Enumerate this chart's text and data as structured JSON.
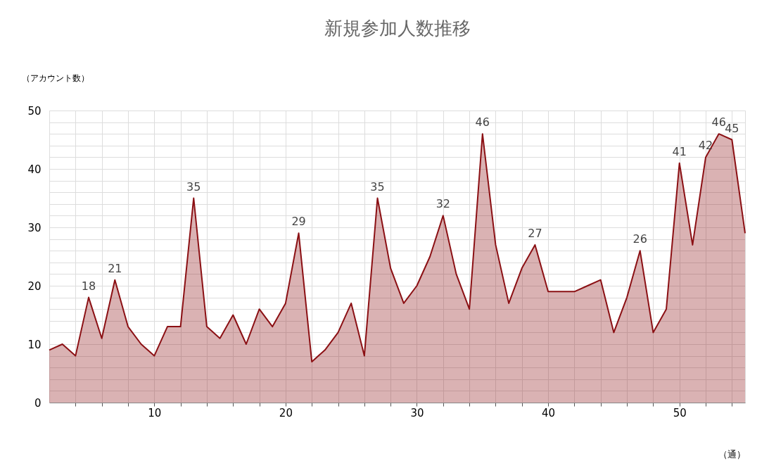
{
  "chart_data": {
    "type": "area",
    "title": "新規参加人数推移",
    "xlabel": "（通）",
    "ylabel": "（アカウント数）",
    "x": [
      2,
      3,
      4,
      5,
      6,
      7,
      8,
      9,
      10,
      11,
      12,
      13,
      14,
      15,
      16,
      17,
      18,
      19,
      20,
      21,
      22,
      23,
      24,
      25,
      26,
      27,
      28,
      29,
      30,
      31,
      32,
      33,
      34,
      35,
      36,
      37,
      38,
      39,
      40,
      41,
      42,
      43,
      44,
      45,
      46,
      47,
      48,
      49,
      50,
      51,
      52,
      53,
      54,
      55
    ],
    "series": [
      {
        "color": "#8b1014",
        "values": [
          9,
          10,
          8,
          18,
          11,
          21,
          13,
          10,
          8,
          13,
          13,
          35,
          13,
          11,
          15,
          10,
          16,
          13,
          17,
          29,
          7,
          9,
          12,
          17,
          8,
          35,
          23,
          17,
          20,
          25,
          32,
          22,
          16,
          46,
          27,
          17,
          23,
          27,
          19,
          19,
          19,
          20,
          21,
          12,
          18,
          26,
          12,
          16,
          41,
          27,
          42,
          46,
          45,
          29
        ],
        "value_labels": [
          null,
          null,
          null,
          "18",
          null,
          "21",
          null,
          null,
          null,
          null,
          null,
          "35",
          null,
          null,
          null,
          null,
          null,
          null,
          null,
          "29",
          null,
          null,
          null,
          null,
          null,
          "35",
          null,
          null,
          null,
          null,
          "32",
          null,
          null,
          "46",
          null,
          null,
          null,
          "27",
          null,
          null,
          null,
          null,
          null,
          null,
          null,
          "26",
          null,
          null,
          "41",
          null,
          "42",
          "46",
          "45",
          null
        ]
      }
    ],
    "xlim": [
      2,
      55
    ],
    "xticks": [
      {
        "value": 4,
        "label": null
      },
      {
        "value": 6,
        "label": null
      },
      {
        "value": 8,
        "label": null
      },
      10,
      {
        "value": 12,
        "label": null
      },
      {
        "value": 14,
        "label": null
      },
      {
        "value": 16,
        "label": null
      },
      {
        "value": 18,
        "label": null
      },
      20,
      {
        "value": 22,
        "label": null
      },
      {
        "value": 24,
        "label": null
      },
      {
        "value": 26,
        "label": null
      },
      {
        "value": 28,
        "label": null
      },
      30,
      {
        "value": 32,
        "label": null
      },
      {
        "value": 34,
        "label": null
      },
      {
        "value": 36,
        "label": null
      },
      {
        "value": 38,
        "label": null
      },
      40,
      {
        "value": 42,
        "label": null
      },
      {
        "value": 44,
        "label": null
      },
      {
        "value": 46,
        "label": null
      },
      {
        "value": 48,
        "label": null
      },
      50,
      {
        "value": 52,
        "label": null
      },
      {
        "value": 54,
        "label": null
      }
    ],
    "ylim": [
      0,
      50
    ],
    "yticks": [
      0,
      {
        "value": 2,
        "label": null
      },
      {
        "value": 4,
        "label": null
      },
      {
        "value": 6,
        "label": null
      },
      {
        "value": 8,
        "label": null
      },
      10,
      {
        "value": 12,
        "label": null
      },
      {
        "value": 14,
        "label": null
      },
      {
        "value": 16,
        "label": null
      },
      {
        "value": 18,
        "label": null
      },
      20,
      {
        "value": 22,
        "label": null
      },
      {
        "value": 24,
        "label": null
      },
      {
        "value": 26,
        "label": null
      },
      {
        "value": 28,
        "label": null
      },
      30,
      {
        "value": 32,
        "label": null
      },
      {
        "value": 34,
        "label": null
      },
      {
        "value": 36,
        "label": null
      },
      {
        "value": 38,
        "label": null
      },
      40,
      {
        "value": 42,
        "label": null
      },
      {
        "value": 44,
        "label": null
      },
      {
        "value": 46,
        "label": null
      },
      {
        "value": 48,
        "label": null
      },
      50
    ],
    "grid": true
  }
}
